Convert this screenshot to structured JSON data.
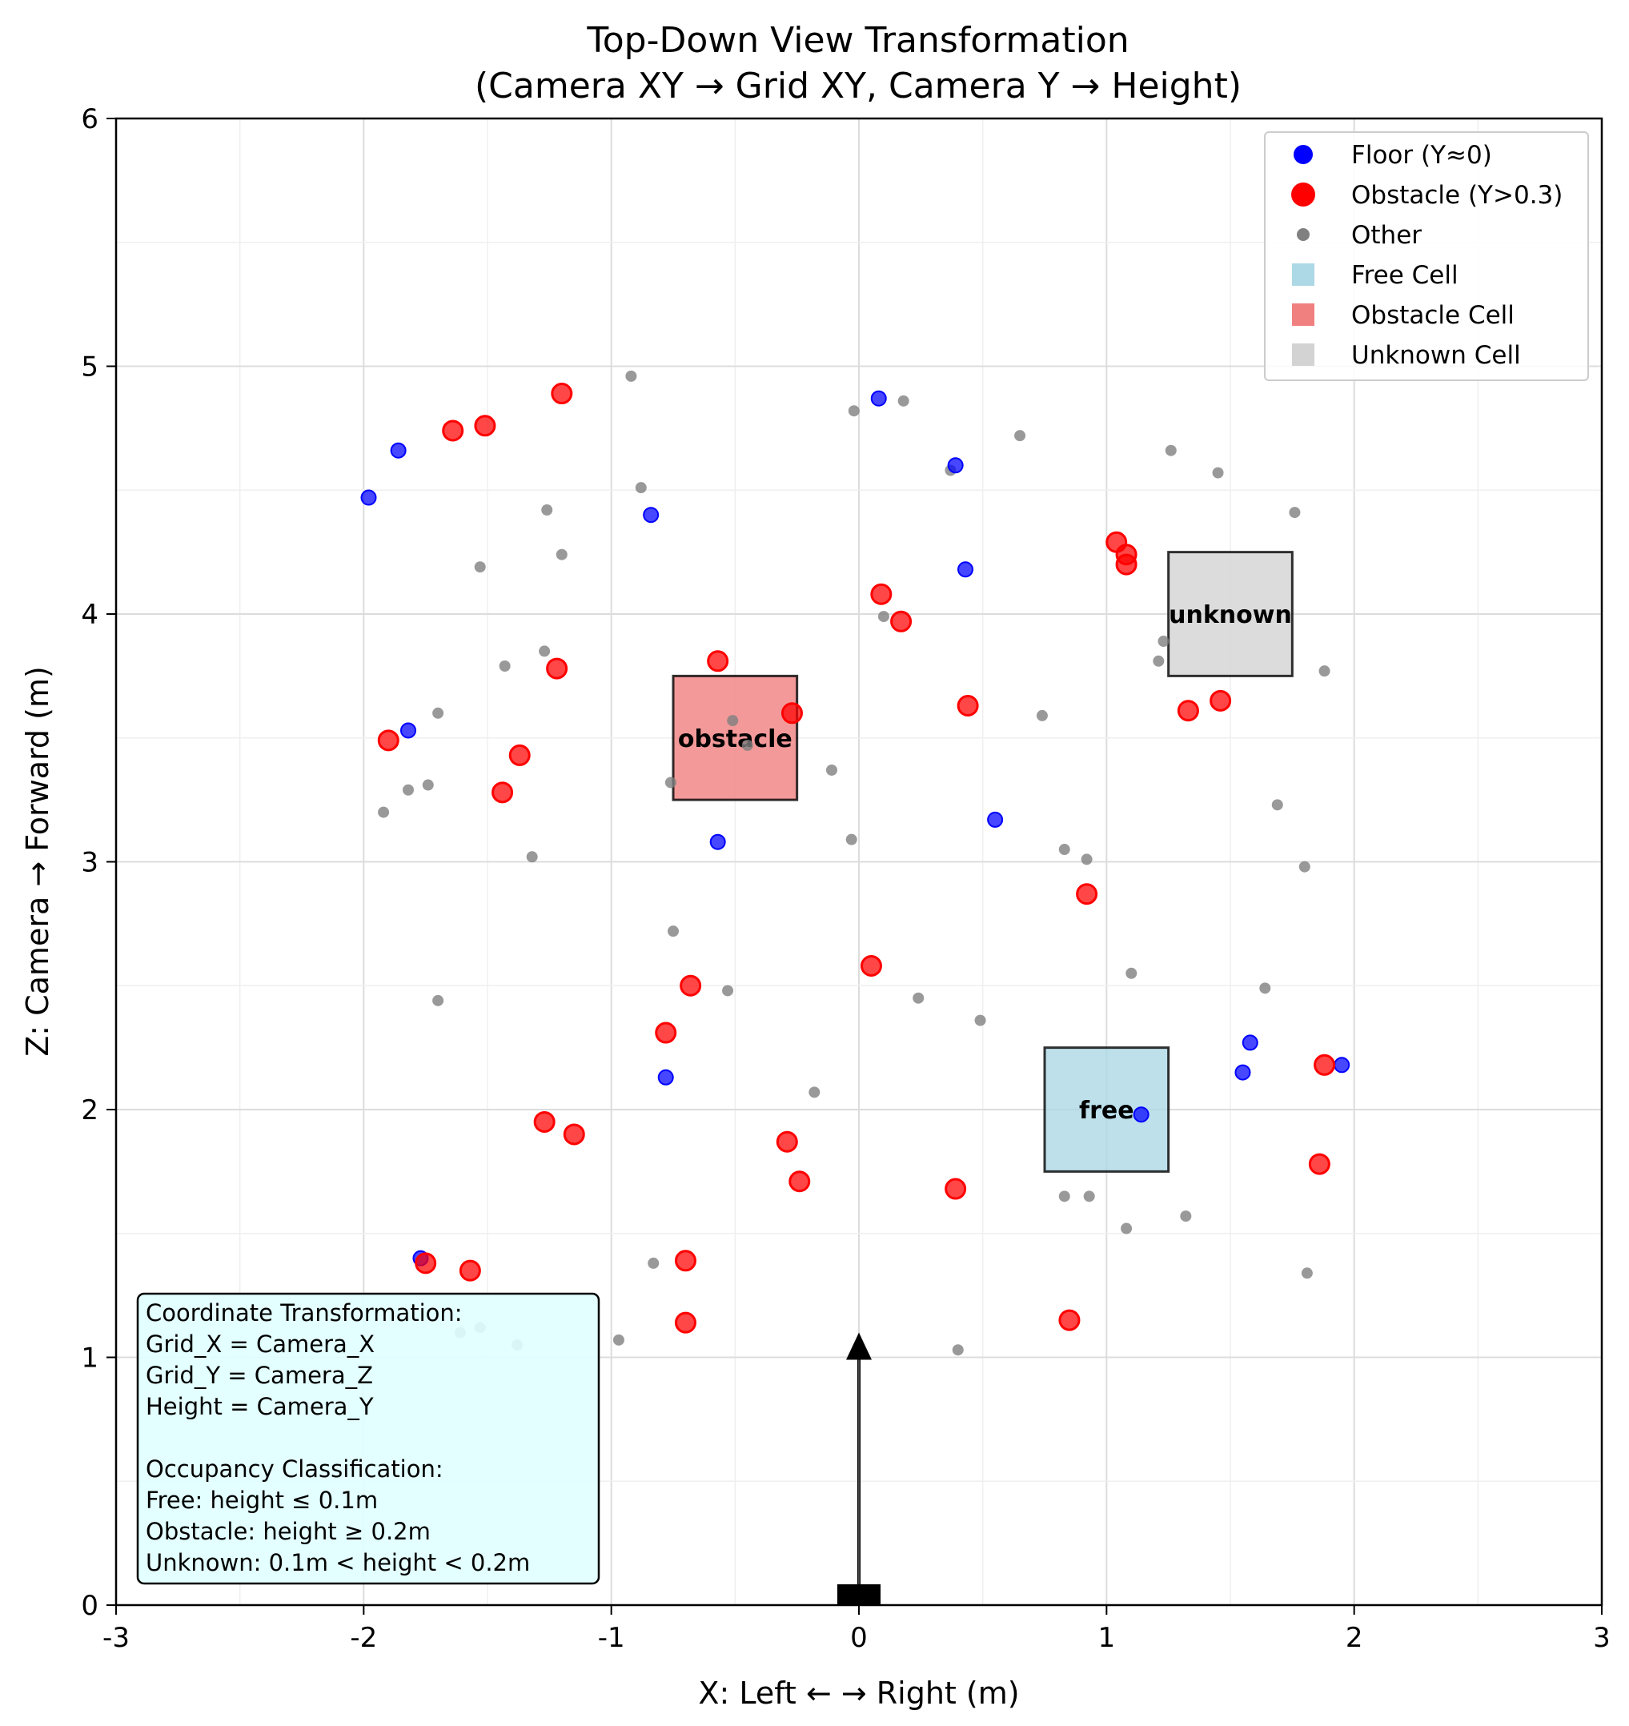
{
  "chart_data": {
    "type": "scatter",
    "title": [
      "Top-Down View Transformation",
      "(Camera XY → Grid XY, Camera Y → Height)"
    ],
    "xlabel": "X: Left ← → Right (m)",
    "ylabel": "Z: Camera → Forward (m)",
    "xlim": [
      -3,
      3
    ],
    "ylim": [
      0,
      6
    ],
    "xticks": [
      -3,
      -2,
      -1,
      0,
      1,
      2,
      3
    ],
    "xtick_labels": [
      "-3",
      "-2",
      "-1",
      "0",
      "1",
      "2",
      "3"
    ],
    "yticks": [
      0,
      1,
      2,
      3,
      4,
      5,
      6
    ],
    "ytick_labels": [
      "0",
      "1",
      "2",
      "3",
      "4",
      "5",
      "6"
    ],
    "grid": true,
    "minor_grid": true,
    "legend_position": "top-right",
    "series": [
      {
        "name": "Floor (Y≈0)",
        "color": "#0000ff",
        "marker": "circle-small",
        "points": [
          [
            -1.98,
            4.47
          ],
          [
            -1.86,
            4.66
          ],
          [
            -0.84,
            4.4
          ],
          [
            0.08,
            4.87
          ],
          [
            0.39,
            4.6
          ],
          [
            0.43,
            4.18
          ],
          [
            -1.82,
            3.53
          ],
          [
            0.55,
            3.17
          ],
          [
            -0.57,
            3.08
          ],
          [
            -0.78,
            2.13
          ],
          [
            1.58,
            2.27
          ],
          [
            1.55,
            2.15
          ],
          [
            1.95,
            2.18
          ],
          [
            1.14,
            1.98
          ],
          [
            -1.77,
            1.4
          ]
        ]
      },
      {
        "name": "Obstacle (Y>0.3)",
        "color": "#ff0000",
        "marker": "circle-large",
        "points": [
          [
            -1.2,
            4.89
          ],
          [
            -1.64,
            4.74
          ],
          [
            -1.51,
            4.76
          ],
          [
            1.04,
            4.29
          ],
          [
            1.08,
            4.24
          ],
          [
            1.08,
            4.2
          ],
          [
            0.09,
            4.08
          ],
          [
            0.17,
            3.97
          ],
          [
            -0.57,
            3.81
          ],
          [
            -1.22,
            3.78
          ],
          [
            -0.27,
            3.6
          ],
          [
            0.44,
            3.63
          ],
          [
            1.33,
            3.61
          ],
          [
            1.46,
            3.65
          ],
          [
            -1.9,
            3.49
          ],
          [
            -1.37,
            3.43
          ],
          [
            -1.44,
            3.28
          ],
          [
            0.92,
            2.87
          ],
          [
            0.05,
            2.58
          ],
          [
            -0.68,
            2.5
          ],
          [
            -0.78,
            2.31
          ],
          [
            1.88,
            2.18
          ],
          [
            -1.27,
            1.95
          ],
          [
            -1.15,
            1.9
          ],
          [
            -0.29,
            1.87
          ],
          [
            -0.24,
            1.71
          ],
          [
            0.39,
            1.68
          ],
          [
            1.86,
            1.78
          ],
          [
            -1.75,
            1.38
          ],
          [
            -1.57,
            1.35
          ],
          [
            -0.7,
            1.39
          ],
          [
            -0.7,
            1.14
          ],
          [
            0.85,
            1.15
          ]
        ]
      },
      {
        "name": "Other",
        "color": "#808080",
        "marker": "circle-tiny",
        "points": [
          [
            -0.92,
            4.96
          ],
          [
            -0.02,
            4.82
          ],
          [
            0.18,
            4.86
          ],
          [
            0.65,
            4.72
          ],
          [
            1.26,
            4.66
          ],
          [
            1.45,
            4.57
          ],
          [
            0.37,
            4.58
          ],
          [
            -0.88,
            4.51
          ],
          [
            -1.26,
            4.42
          ],
          [
            1.76,
            4.41
          ],
          [
            -1.2,
            4.24
          ],
          [
            -1.53,
            4.19
          ],
          [
            0.1,
            3.99
          ],
          [
            1.23,
            3.89
          ],
          [
            1.21,
            3.81
          ],
          [
            1.88,
            3.77
          ],
          [
            -1.27,
            3.85
          ],
          [
            -1.43,
            3.79
          ],
          [
            -1.7,
            3.6
          ],
          [
            0.74,
            3.59
          ],
          [
            -0.51,
            3.57
          ],
          [
            -0.45,
            3.47
          ],
          [
            -0.11,
            3.37
          ],
          [
            -0.76,
            3.32
          ],
          [
            -1.74,
            3.31
          ],
          [
            -1.82,
            3.29
          ],
          [
            1.69,
            3.23
          ],
          [
            -1.92,
            3.2
          ],
          [
            -0.03,
            3.09
          ],
          [
            0.83,
            3.05
          ],
          [
            0.92,
            3.01
          ],
          [
            -1.32,
            3.02
          ],
          [
            1.8,
            2.98
          ],
          [
            -0.75,
            2.72
          ],
          [
            1.1,
            2.55
          ],
          [
            1.64,
            2.49
          ],
          [
            -0.53,
            2.48
          ],
          [
            0.24,
            2.45
          ],
          [
            -1.7,
            2.44
          ],
          [
            0.49,
            2.36
          ],
          [
            -0.18,
            2.07
          ],
          [
            0.83,
            1.65
          ],
          [
            0.93,
            1.65
          ],
          [
            1.32,
            1.57
          ],
          [
            1.08,
            1.52
          ],
          [
            -0.83,
            1.38
          ],
          [
            1.81,
            1.34
          ],
          [
            -1.61,
            1.1
          ],
          [
            -1.53,
            1.12
          ],
          [
            -0.97,
            1.07
          ],
          [
            -1.38,
            1.05
          ],
          [
            0.4,
            1.03
          ]
        ]
      }
    ],
    "cells": [
      {
        "label": "obstacle",
        "legend": "Obstacle Cell",
        "x": [
          -0.75,
          -0.25
        ],
        "y": [
          3.25,
          3.75
        ],
        "color": "#f08080"
      },
      {
        "label": "unknown",
        "legend": "Unknown Cell",
        "x": [
          1.25,
          1.75
        ],
        "y": [
          3.75,
          4.25
        ],
        "color": "#d3d3d3"
      },
      {
        "label": "free",
        "legend": "Free Cell",
        "x": [
          0.75,
          1.25
        ],
        "y": [
          1.75,
          2.25
        ],
        "color": "#add8e6"
      }
    ],
    "camera": {
      "x": 0,
      "y": 0,
      "arrow_to": [
        0,
        1.1
      ]
    },
    "legend": [
      "Floor (Y≈0)",
      "Obstacle (Y>0.3)",
      "Other",
      "Free Cell",
      "Obstacle Cell",
      "Unknown Cell"
    ],
    "annotation_box": {
      "position": "bottom-left",
      "lines": [
        "Coordinate Transformation:",
        "Grid_X = Camera_X",
        "Grid_Y = Camera_Z",
        "Height = Camera_Y",
        "",
        "Occupancy Classification:",
        "Free: height ≤ 0.1m",
        "Obstacle: height ≥ 0.2m",
        "Unknown: 0.1m < height < 0.2m"
      ],
      "background": "#e0ffff"
    }
  }
}
